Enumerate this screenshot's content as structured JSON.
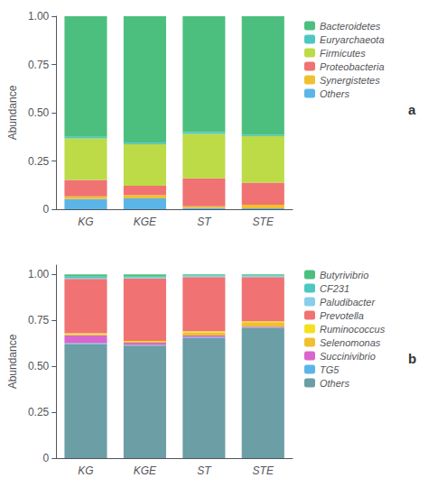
{
  "chart_data": [
    {
      "type": "bar",
      "stacked": true,
      "annotation": "a",
      "ylabel": "Abundance",
      "categories": [
        "KG",
        "KGE",
        "ST",
        "STE"
      ],
      "series": [
        {
          "name": "Bacteroidetes",
          "color": "#4CBF7F",
          "values": [
            0.625,
            0.655,
            0.6,
            0.615
          ]
        },
        {
          "name": "Euryarchaeota",
          "color": "#4DC8C0",
          "values": [
            0.008,
            0.008,
            0.01,
            0.007
          ]
        },
        {
          "name": "Firmicutes",
          "color": "#BCDB46",
          "values": [
            0.215,
            0.215,
            0.23,
            0.24
          ]
        },
        {
          "name": "Proteobacteria",
          "color": "#F07272",
          "values": [
            0.085,
            0.048,
            0.145,
            0.115
          ]
        },
        {
          "name": "Synergistetes",
          "color": "#F0C030",
          "values": [
            0.015,
            0.018,
            0.008,
            0.018
          ]
        },
        {
          "name": "Others",
          "color": "#5BB5E8",
          "values": [
            0.052,
            0.056,
            0.007,
            0.005
          ]
        }
      ],
      "ylim": [
        0,
        1.0
      ],
      "yticks": [
        0,
        0.25,
        {
          "value": 0.5,
          "label": "0.50"
        },
        0.75,
        {
          "value": 1.0,
          "label": "1.00"
        }
      ],
      "grid": false,
      "legend": "right"
    },
    {
      "type": "bar",
      "stacked": true,
      "annotation": "b",
      "ylabel": "Abundance",
      "categories": [
        "KG",
        "KGE",
        "ST",
        "STE"
      ],
      "series": [
        {
          "name": "Butyrivibrio",
          "color": "#4CBF7F",
          "values": [
            0.012,
            0.012,
            0.005,
            0.005
          ]
        },
        {
          "name": "CF231",
          "color": "#4DC8C0",
          "values": [
            0.007,
            0.005,
            0.005,
            0.005
          ]
        },
        {
          "name": "Paludibacter",
          "color": "#87CEEB",
          "values": [
            0.006,
            0.005,
            0.005,
            0.005
          ]
        },
        {
          "name": "Prevotella",
          "color": "#F07272",
          "values": [
            0.295,
            0.34,
            0.295,
            0.24
          ]
        },
        {
          "name": "Ruminococcus",
          "color": "#F5E020",
          "values": [
            0.006,
            0.005,
            0.005,
            0.005
          ]
        },
        {
          "name": "Selenomonas",
          "color": "#F0C030",
          "values": [
            0.006,
            0.005,
            0.018,
            0.025
          ]
        },
        {
          "name": "Succinivibrio",
          "color": "#D966CC",
          "values": [
            0.042,
            0.012,
            0.008,
            0.005
          ]
        },
        {
          "name": "TG5",
          "color": "#5BB5E8",
          "values": [
            0.005,
            0.004,
            0.004,
            0.004
          ]
        },
        {
          "name": "Others",
          "color": "#6B9EA5",
          "values": [
            0.621,
            0.612,
            0.655,
            0.706
          ]
        }
      ],
      "ylim": [
        0,
        1.05
      ],
      "yticks": [
        0,
        0.25,
        {
          "value": 0.5,
          "label": "0.50"
        },
        0.75,
        {
          "value": 1.0,
          "label": "1.00"
        }
      ],
      "grid": false,
      "legend": "right"
    }
  ]
}
